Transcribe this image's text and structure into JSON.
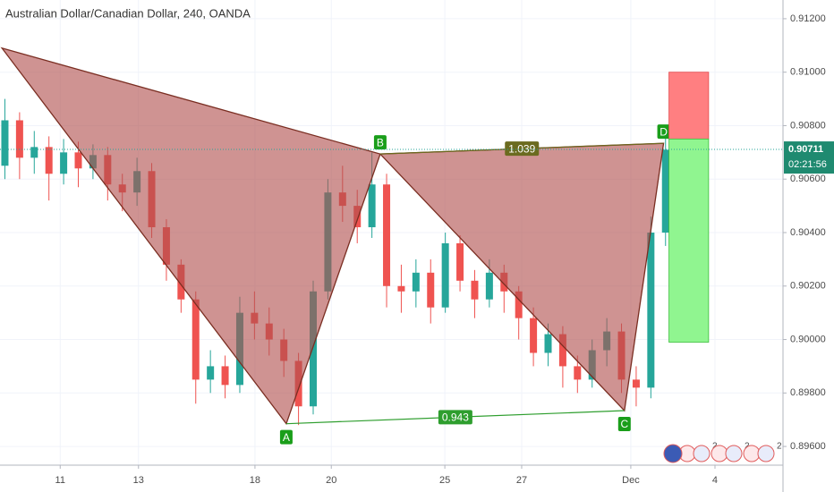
{
  "chart_data": {
    "type": "candlestick",
    "title": "Australian Dollar/Canadian Dollar, 240, OANDA",
    "xlim": [
      0,
      160
    ],
    "xticks": [
      {
        "value": 12.3,
        "label": "11"
      },
      {
        "value": 28.3,
        "label": "13"
      },
      {
        "value": 52.1,
        "label": "18"
      },
      {
        "value": 67.7,
        "label": "20"
      },
      {
        "value": 90.9,
        "label": "25"
      },
      {
        "value": 106.6,
        "label": "27"
      },
      {
        "value": 128.9,
        "label": "Dec"
      },
      {
        "value": 146.1,
        "label": "4"
      }
    ],
    "ylim": [
      0.8953,
      0.9127
    ],
    "yticks": [
      {
        "value": 0.912,
        "label": "0.91200"
      },
      {
        "value": 0.91,
        "label": "0.91000"
      },
      {
        "value": 0.908,
        "label": "0.90800"
      },
      {
        "value": 0.906,
        "label": "0.90600"
      },
      {
        "value": 0.904,
        "label": "0.90400"
      },
      {
        "value": 0.902,
        "label": "0.90200"
      },
      {
        "value": 0.9,
        "label": "0.90000"
      },
      {
        "value": 0.898,
        "label": "0.89800"
      },
      {
        "value": 0.896,
        "label": "0.89600"
      }
    ],
    "grid": true,
    "up_color": "#26a69a",
    "down_color": "#ef5350",
    "candles": {
      "x": [
        1,
        4,
        7,
        10,
        13,
        16,
        19,
        22,
        25,
        28,
        31,
        34,
        37,
        40,
        43,
        46,
        49,
        52,
        55,
        58,
        61,
        64,
        67,
        70,
        73,
        76,
        79,
        82,
        85,
        88,
        91,
        94,
        97,
        100,
        103,
        106,
        109,
        112,
        115,
        118,
        121,
        124,
        127,
        130,
        133,
        136
      ],
      "open": [
        0.9065,
        0.9082,
        0.9068,
        0.9072,
        0.9062,
        0.907,
        0.9064,
        0.9069,
        0.9058,
        0.9055,
        0.9063,
        0.9042,
        0.9028,
        0.9015,
        0.8985,
        0.899,
        0.8983,
        0.901,
        0.9006,
        0.9,
        0.8992,
        0.8975,
        0.9018,
        0.9055,
        0.905,
        0.9042,
        0.9058,
        0.902,
        0.9018,
        0.9025,
        0.9012,
        0.9036,
        0.9022,
        0.9015,
        0.9025,
        0.9018,
        0.9008,
        0.8995,
        0.9002,
        0.899,
        0.8985,
        0.8996,
        0.9003,
        0.8985,
        0.8982,
        0.904
      ],
      "high": [
        0.909,
        0.9085,
        0.9078,
        0.9076,
        0.9075,
        0.9074,
        0.9073,
        0.9072,
        0.9062,
        0.9068,
        0.9066,
        0.9045,
        0.903,
        0.9018,
        0.8996,
        0.8994,
        0.9016,
        0.9018,
        0.9012,
        0.9004,
        0.8995,
        0.9022,
        0.906,
        0.9065,
        0.9056,
        0.907,
        0.9062,
        0.9028,
        0.903,
        0.903,
        0.904,
        0.9039,
        0.9026,
        0.903,
        0.9028,
        0.902,
        0.9012,
        0.9006,
        0.9005,
        0.8994,
        0.9,
        0.9008,
        0.9006,
        0.899,
        0.9046,
        0.9076
      ],
      "low": [
        0.906,
        0.906,
        0.9062,
        0.9052,
        0.9058,
        0.9057,
        0.906,
        0.9052,
        0.9048,
        0.905,
        0.9038,
        0.9022,
        0.901,
        0.8976,
        0.898,
        0.8978,
        0.898,
        0.9,
        0.8994,
        0.8986,
        0.8968,
        0.8972,
        0.9015,
        0.9044,
        0.9036,
        0.9038,
        0.9012,
        0.901,
        0.9012,
        0.9006,
        0.901,
        0.9018,
        0.9008,
        0.9012,
        0.901,
        0.9,
        0.899,
        0.899,
        0.8982,
        0.898,
        0.8982,
        0.899,
        0.898,
        0.8975,
        0.8978,
        0.9035
      ],
      "close": [
        0.9082,
        0.9068,
        0.9072,
        0.9062,
        0.907,
        0.9064,
        0.9069,
        0.9058,
        0.9055,
        0.9063,
        0.9042,
        0.9028,
        0.9015,
        0.8985,
        0.899,
        0.8983,
        0.901,
        0.9006,
        0.9,
        0.8992,
        0.8975,
        0.9018,
        0.9055,
        0.905,
        0.9042,
        0.9058,
        0.902,
        0.9018,
        0.9025,
        0.9012,
        0.9036,
        0.9022,
        0.9015,
        0.9025,
        0.9018,
        0.9008,
        0.8995,
        0.9002,
        0.899,
        0.8985,
        0.8996,
        0.9003,
        0.8985,
        0.8982,
        0.904,
        0.9071
      ]
    },
    "pattern": {
      "x": [
        0.4,
        58.5,
        77.7,
        127.6,
        135.6
      ],
      "y": [
        0.9109,
        0.89685,
        0.90694,
        0.89734,
        0.90734
      ],
      "labels": [
        null,
        "A",
        "B",
        "C",
        "D"
      ],
      "color": "#b2504f"
    },
    "ratios": [
      0.943,
      1.039
    ],
    "position": {
      "x": [
        136.7,
        144.8
      ],
      "stop": 0.91,
      "entry": 0.9075,
      "target": 0.8999
    },
    "last_price": 0.90711,
    "countdown": "02:21:56",
    "event_counts": [
      "2",
      "2",
      "2"
    ]
  }
}
